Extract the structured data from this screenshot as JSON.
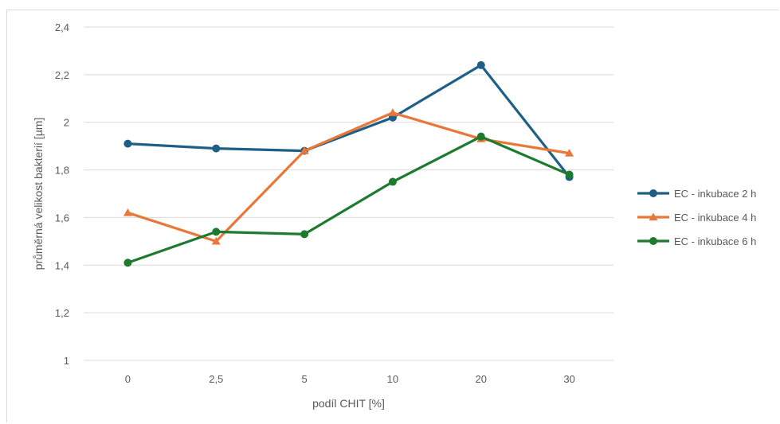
{
  "chart_data": {
    "type": "line",
    "title": "",
    "xlabel": "podíl CHIT [%]",
    "ylabel": "průměrná velikost bakterií [µm]",
    "categories": [
      "0",
      "2,5",
      "5",
      "10",
      "20",
      "30"
    ],
    "ylim": [
      1,
      2.4
    ],
    "yticks": [
      1,
      1.2,
      1.4,
      1.6,
      1.8,
      2,
      2.2,
      2.4
    ],
    "ytick_labels": [
      "1",
      "1,2",
      "1,4",
      "1,6",
      "1,8",
      "2",
      "2,2",
      "2,4"
    ],
    "grid": true,
    "legend_position": "right",
    "series": [
      {
        "name": "EC - inkubace 2 h",
        "color": "#1f5f87",
        "marker": "circle",
        "values": [
          1.91,
          1.89,
          1.88,
          2.02,
          2.24,
          1.77
        ]
      },
      {
        "name": "EC - inkubace 4 h",
        "color": "#e8773a",
        "marker": "triangle",
        "values": [
          1.62,
          1.5,
          1.88,
          2.04,
          1.93,
          1.87
        ]
      },
      {
        "name": "EC - inkubace 6 h",
        "color": "#1e7a2e",
        "marker": "circle",
        "values": [
          1.41,
          1.54,
          1.53,
          1.75,
          1.94,
          1.78
        ]
      }
    ]
  }
}
